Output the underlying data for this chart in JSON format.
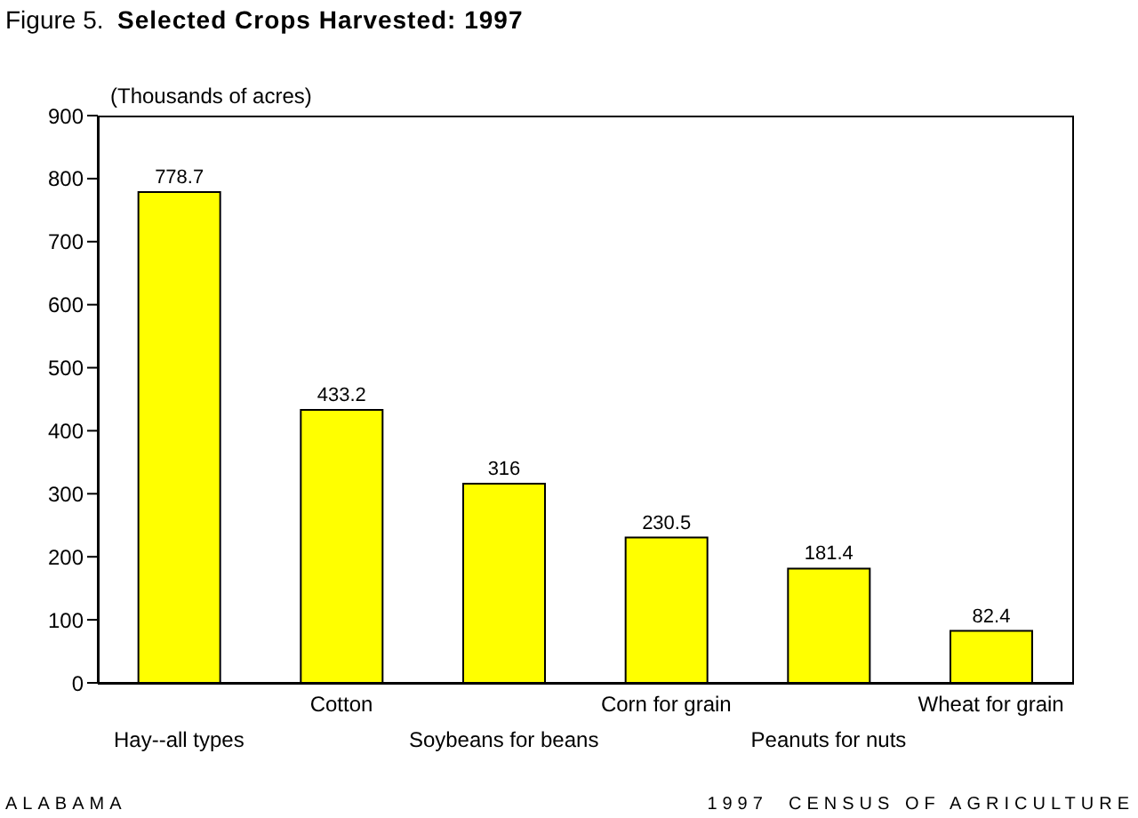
{
  "chart_data": {
    "type": "bar",
    "title": "Figure 5.  Selected Crops Harvested: 1997",
    "ylabel": "(Thousands of acres)",
    "categories": [
      "Hay--all types",
      "Cotton",
      "Soybeans for beans",
      "Corn for grain",
      "Peanuts for nuts",
      "Wheat for grain"
    ],
    "values": [
      778.7,
      433.2,
      316,
      230.5,
      181.4,
      82.4
    ],
    "color": "#ffff00",
    "ylim": [
      0,
      900
    ],
    "yticks": [
      0,
      100,
      200,
      300,
      400,
      500,
      600,
      700,
      800,
      900
    ],
    "grid": false,
    "data_labels": true,
    "annotations": [
      "ALABAMA",
      "1997  CENSUS OF AGRICULTURE"
    ]
  }
}
